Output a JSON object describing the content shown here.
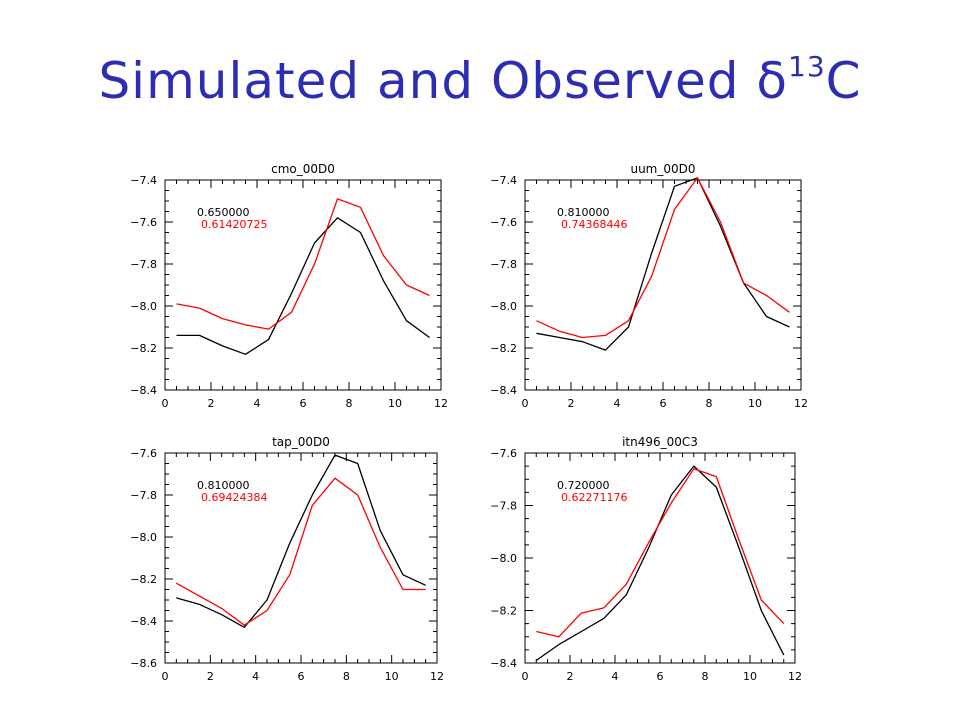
{
  "slide": {
    "title_main": "Simulated and Observed δ",
    "title_sup": "13",
    "title_end": "C"
  },
  "colors": {
    "title": "#2d2db4",
    "observed": "#000000",
    "simulated": "#ff0000"
  },
  "chart_data": [
    {
      "type": "line",
      "title": "cmo_00D0",
      "xlim": [
        0,
        12
      ],
      "ylim": [
        -8.4,
        -7.4
      ],
      "xticks": [
        "0",
        "2",
        "4",
        "6",
        "8",
        "10",
        "12"
      ],
      "yticks": [
        "-7.4",
        "-7.6",
        "-7.8",
        "-8.0",
        "-8.2",
        "-8.4"
      ],
      "annotations": [
        "0.650000",
        "0.61420725"
      ],
      "x": [
        0.5,
        1.5,
        2.5,
        3.5,
        4.5,
        5.5,
        6.5,
        7.5,
        8.5,
        9.5,
        10.5,
        11.5
      ],
      "series": [
        {
          "color": "#000000",
          "values": [
            -8.14,
            -8.14,
            -8.19,
            -8.23,
            -8.16,
            -7.94,
            -7.7,
            -7.58,
            -7.65,
            -7.88,
            -8.07,
            -8.15
          ]
        },
        {
          "color": "#ff0000",
          "values": [
            -7.99,
            -8.01,
            -8.06,
            -8.09,
            -8.11,
            -8.03,
            -7.8,
            -7.49,
            -7.53,
            -7.76,
            -7.9,
            -7.95
          ]
        }
      ]
    },
    {
      "type": "line",
      "title": "uum_00D0",
      "xlim": [
        0,
        12
      ],
      "ylim": [
        -8.4,
        -7.4
      ],
      "xticks": [
        "0",
        "2",
        "4",
        "6",
        "8",
        "10",
        "12"
      ],
      "yticks": [
        "-7.4",
        "-7.6",
        "-7.8",
        "-8.0",
        "-8.2",
        "-8.4"
      ],
      "annotations": [
        "0.810000",
        "0.74368446"
      ],
      "x": [
        0.5,
        1.5,
        2.5,
        3.5,
        4.5,
        5.5,
        6.5,
        7.5,
        8.5,
        9.5,
        10.5,
        11.5
      ],
      "series": [
        {
          "color": "#000000",
          "values": [
            -8.13,
            -8.15,
            -8.17,
            -8.21,
            -8.1,
            -7.75,
            -7.43,
            -7.39,
            -7.62,
            -7.89,
            -8.05,
            -8.1
          ]
        },
        {
          "color": "#ff0000",
          "values": [
            -8.07,
            -8.12,
            -8.15,
            -8.14,
            -8.07,
            -7.86,
            -7.54,
            -7.39,
            -7.6,
            -7.89,
            -7.95,
            -8.03
          ]
        }
      ]
    },
    {
      "type": "line",
      "title": "tap_00D0",
      "xlim": [
        0,
        12
      ],
      "ylim": [
        -8.6,
        -7.6
      ],
      "xticks": [
        "0",
        "2",
        "4",
        "6",
        "8",
        "10",
        "12"
      ],
      "yticks": [
        "-7.6",
        "-7.8",
        "-8.0",
        "-8.2",
        "-8.4",
        "-8.6"
      ],
      "annotations": [
        "0.810000",
        "0.69424384"
      ],
      "x": [
        0.5,
        1.5,
        2.5,
        3.5,
        4.5,
        5.5,
        6.5,
        7.5,
        8.5,
        9.5,
        10.5,
        11.5
      ],
      "series": [
        {
          "color": "#000000",
          "values": [
            -8.29,
            -8.32,
            -8.37,
            -8.43,
            -8.3,
            -8.03,
            -7.8,
            -7.61,
            -7.65,
            -7.97,
            -8.18,
            -8.23
          ]
        },
        {
          "color": "#ff0000",
          "values": [
            -8.22,
            -8.28,
            -8.34,
            -8.42,
            -8.35,
            -8.18,
            -7.85,
            -7.72,
            -7.8,
            -8.05,
            -8.25,
            -8.25
          ]
        }
      ]
    },
    {
      "type": "line",
      "title": "itn496_00C3",
      "xlim": [
        0,
        12
      ],
      "ylim": [
        -8.4,
        -7.6
      ],
      "xticks": [
        "0",
        "2",
        "4",
        "6",
        "8",
        "10",
        "12"
      ],
      "yticks": [
        "-7.6",
        "-7.8",
        "-8.0",
        "-8.2",
        "-8.4"
      ],
      "annotations": [
        "0.720000",
        "0.62271176"
      ],
      "x": [
        0.5,
        1.5,
        2.5,
        3.5,
        4.5,
        5.5,
        6.5,
        7.5,
        8.5,
        9.5,
        10.5,
        11.5
      ],
      "series": [
        {
          "color": "#000000",
          "values": [
            -8.39,
            -8.33,
            -8.28,
            -8.23,
            -8.14,
            -7.96,
            -7.76,
            -7.65,
            -7.73,
            -7.96,
            -8.2,
            -8.37
          ]
        },
        {
          "color": "#ff0000",
          "values": [
            -8.28,
            -8.3,
            -8.21,
            -8.19,
            -8.1,
            -7.94,
            -7.79,
            -7.66,
            -7.69,
            -7.93,
            -8.16,
            -8.25
          ]
        }
      ]
    }
  ]
}
